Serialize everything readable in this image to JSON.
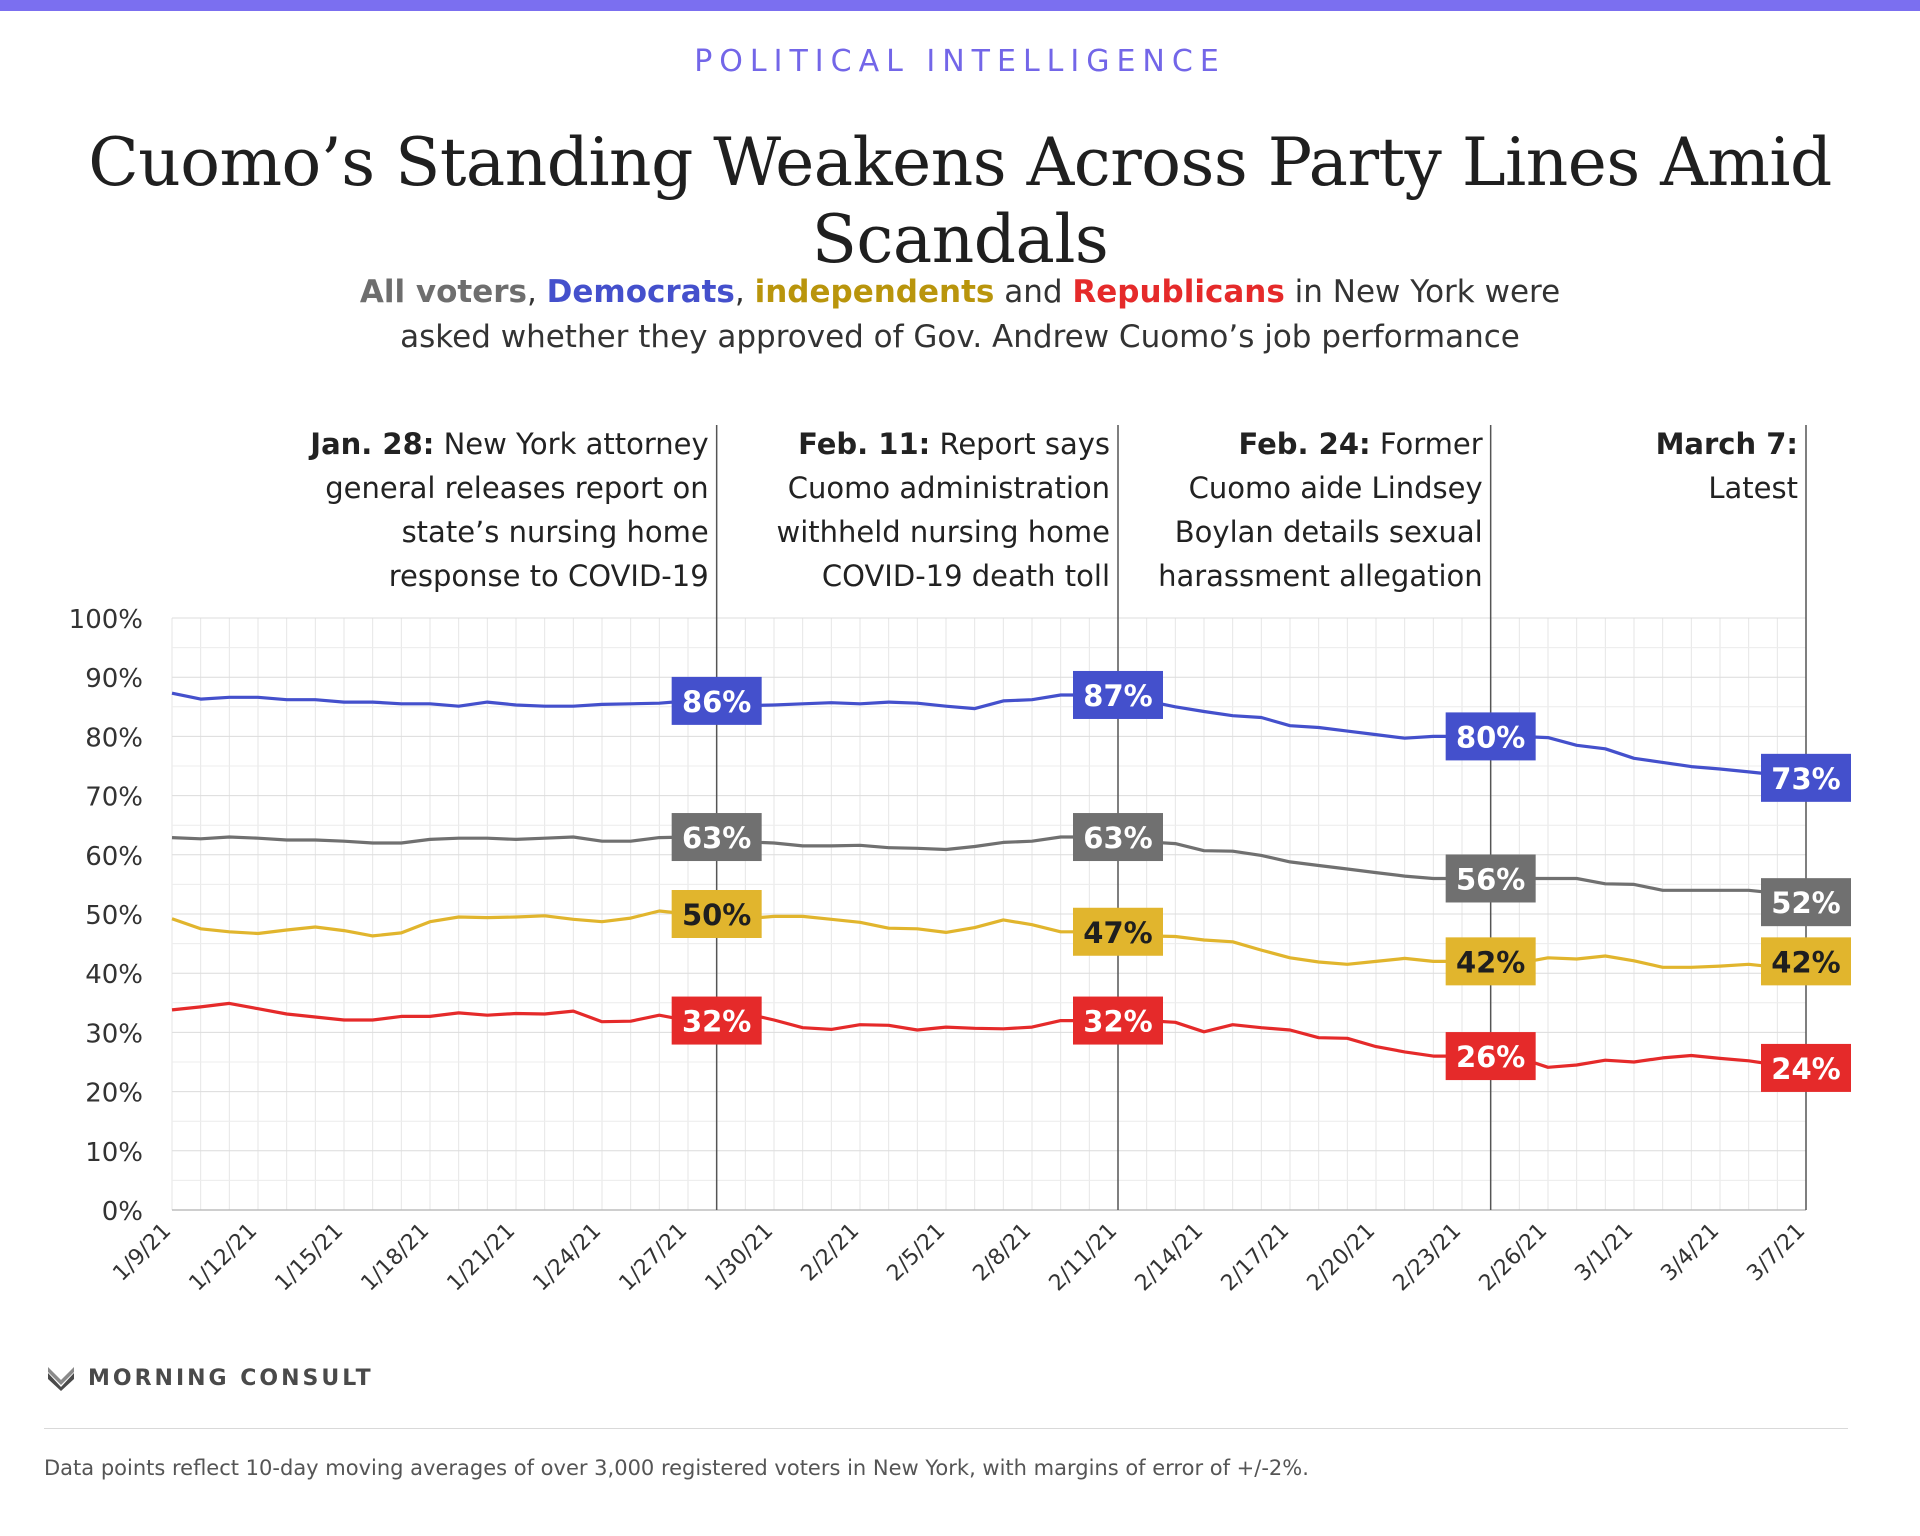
{
  "header": {
    "kicker": "POLITICAL INTELLIGENCE",
    "title": "Cuomo’s Standing Weakens Across Party Lines Amid Scandals",
    "subtitle": {
      "all": "All voters",
      "sep1": ", ",
      "dem": "Democrats",
      "sep2": ", ",
      "ind": "independents",
      "and": " and ",
      "rep": "Republicans",
      "rest1": " in New York were",
      "rest2": "asked whether they approved of Gov. Andrew Cuomo’s job performance"
    }
  },
  "brand": {
    "name": "MORNING CONSULT"
  },
  "footnote": "Data points reflect 10-day moving averages of over 3,000 registered voters in New York, with margins of error of +/-2%.",
  "colors": {
    "all": "#707070",
    "dem": "#4450cc",
    "ind": "#e1b52d",
    "rep": "#e52a2a",
    "accent": "#7b6ff0"
  },
  "chart_data": {
    "type": "line",
    "x": [
      "1/9/21",
      "1/10/21",
      "1/11/21",
      "1/12/21",
      "1/13/21",
      "1/14/21",
      "1/15/21",
      "1/16/21",
      "1/17/21",
      "1/18/21",
      "1/19/21",
      "1/20/21",
      "1/21/21",
      "1/22/21",
      "1/23/21",
      "1/24/21",
      "1/25/21",
      "1/26/21",
      "1/27/21",
      "1/28/21",
      "1/29/21",
      "1/30/21",
      "1/31/21",
      "2/1/21",
      "2/2/21",
      "2/3/21",
      "2/4/21",
      "2/5/21",
      "2/6/21",
      "2/7/21",
      "2/8/21",
      "2/9/21",
      "2/10/21",
      "2/11/21",
      "2/12/21",
      "2/13/21",
      "2/14/21",
      "2/15/21",
      "2/16/21",
      "2/17/21",
      "2/18/21",
      "2/19/21",
      "2/20/21",
      "2/21/21",
      "2/22/21",
      "2/23/21",
      "2/24/21",
      "2/25/21",
      "2/26/21",
      "2/27/21",
      "2/28/21",
      "3/1/21",
      "3/2/21",
      "3/3/21",
      "3/4/21",
      "3/5/21",
      "3/6/21",
      "3/7/21"
    ],
    "xticks": [
      "1/9/21",
      "1/12/21",
      "1/15/21",
      "1/18/21",
      "1/21/21",
      "1/24/21",
      "1/27/21",
      "1/30/21",
      "2/2/21",
      "2/5/21",
      "2/8/21",
      "2/11/21",
      "2/14/21",
      "2/17/21",
      "2/20/21",
      "2/23/21",
      "2/26/21",
      "3/1/21",
      "3/4/21",
      "3/7/21"
    ],
    "yticks": [
      "0%",
      "10%",
      "20%",
      "30%",
      "40%",
      "50%",
      "60%",
      "70%",
      "80%",
      "90%",
      "100%"
    ],
    "ylim": [
      0,
      100
    ],
    "grid": true,
    "series": [
      {
        "name": "All voters",
        "key": "all",
        "values": [
          62.9,
          62.7,
          63.0,
          62.8,
          62.5,
          62.5,
          62.3,
          62.0,
          62.0,
          62.6,
          62.8,
          62.8,
          62.6,
          62.8,
          63.0,
          62.3,
          62.3,
          62.9,
          63,
          63,
          62.2,
          62.0,
          61.5,
          61.5,
          61.6,
          61.2,
          61.1,
          60.9,
          61.4,
          62.1,
          62.3,
          63,
          63,
          63,
          62.2,
          61.9,
          60.7,
          60.6,
          59.9,
          58.8,
          58.2,
          57.6,
          57.0,
          56.4,
          56,
          56,
          56,
          56,
          56,
          56,
          55.1,
          55.0,
          54.0,
          54.0,
          54.0,
          54.0,
          53.5,
          52
        ]
      },
      {
        "name": "Democrats",
        "key": "dem",
        "values": [
          87.3,
          86.3,
          86.6,
          86.6,
          86.2,
          86.2,
          85.8,
          85.8,
          85.5,
          85.5,
          85.1,
          85.8,
          85.3,
          85.1,
          85.1,
          85.4,
          85.5,
          85.6,
          86,
          86,
          85.2,
          85.3,
          85.5,
          85.7,
          85.5,
          85.8,
          85.6,
          85.1,
          84.7,
          86.0,
          86.2,
          87,
          87,
          87,
          86.0,
          85.0,
          84.2,
          83.5,
          83.2,
          81.8,
          81.5,
          80.9,
          80.3,
          79.7,
          80,
          80,
          80,
          80,
          79.8,
          78.5,
          77.9,
          76.3,
          75.6,
          74.9,
          74.5,
          74,
          73.5,
          73
        ]
      },
      {
        "name": "independents",
        "key": "ind",
        "values": [
          49.2,
          47.5,
          47.0,
          46.7,
          47.3,
          47.8,
          47.2,
          46.3,
          46.8,
          48.7,
          49.5,
          49.4,
          49.5,
          49.7,
          49.1,
          48.7,
          49.3,
          50.5,
          50,
          50,
          49.2,
          49.6,
          49.6,
          49.1,
          48.6,
          47.6,
          47.5,
          46.9,
          47.7,
          49.0,
          48.2,
          47,
          47,
          47,
          46.3,
          46.2,
          45.6,
          45.3,
          43.9,
          42.6,
          41.9,
          41.5,
          42.0,
          42.5,
          42,
          42,
          42,
          41.7,
          42.6,
          42.4,
          42.9,
          42.1,
          41.0,
          41.0,
          41.2,
          41.5,
          41,
          42
        ]
      },
      {
        "name": "Republicans",
        "key": "rep",
        "values": [
          33.8,
          34.3,
          34.9,
          34.0,
          33.1,
          32.6,
          32.1,
          32.1,
          32.7,
          32.7,
          33.3,
          32.9,
          33.2,
          33.1,
          33.6,
          31.8,
          31.9,
          32.9,
          32,
          32,
          33.2,
          32.1,
          30.8,
          30.5,
          31.3,
          31.2,
          30.4,
          30.9,
          30.7,
          30.6,
          30.9,
          32,
          32,
          32,
          32.0,
          31.7,
          30.1,
          31.3,
          30.8,
          30.4,
          29.1,
          29.0,
          27.6,
          26.7,
          26,
          26,
          26,
          25.7,
          24.1,
          24.5,
          25.3,
          25.0,
          25.7,
          26.1,
          25.6,
          25.2,
          24.5,
          24
        ]
      }
    ],
    "events": [
      {
        "date": "1/28/21",
        "bold": "Jan. 28:",
        "lines": [
          " New York attorney",
          "general releases report on",
          "state’s nursing home",
          "response to COVID-19"
        ],
        "labels": {
          "dem": "86%",
          "all": "63%",
          "ind": "50%",
          "rep": "32%"
        }
      },
      {
        "date": "2/11/21",
        "bold": "Feb. 11:",
        "lines": [
          " Report says",
          "Cuomo administration",
          "withheld nursing home",
          "COVID-19 death toll"
        ],
        "labels": {
          "dem": "87%",
          "all": "63%",
          "ind": "47%",
          "rep": "32%"
        }
      },
      {
        "date": "2/24/21",
        "bold": "Feb. 24:",
        "lines": [
          " Former",
          "Cuomo aide Lindsey",
          "Boylan details sexual",
          "harassment allegation"
        ],
        "labels": {
          "dem": "80%",
          "all": "56%",
          "ind": "42%",
          "rep": "26%"
        }
      },
      {
        "date": "3/7/21",
        "bold": "March 7:",
        "lines": [
          "",
          "Latest"
        ],
        "labels": {
          "dem": "73%",
          "all": "52%",
          "ind": "42%",
          "rep": "24%"
        }
      }
    ]
  }
}
